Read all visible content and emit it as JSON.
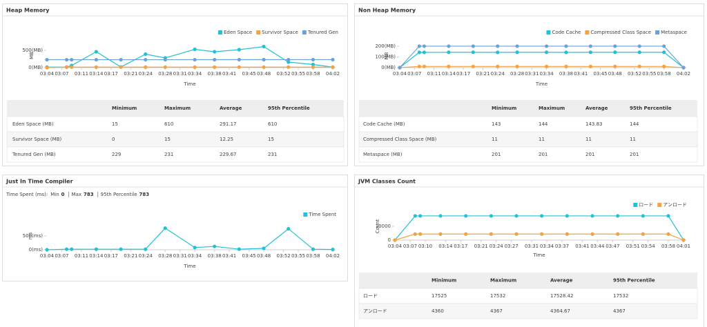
{
  "chart_data": [
    {
      "type": "line",
      "title": "Heap Memory",
      "ylabel": "MB",
      "xlabel": "Time",
      "x": [
        "03:04",
        "03:08",
        "03:09",
        "03:14",
        "03:19",
        "03:24",
        "03:28",
        "03:34",
        "03:38",
        "03:43",
        "03:48",
        "03:53",
        "03:58",
        "04:02"
      ],
      "xlim": [
        "03:04",
        "04:02"
      ],
      "xticks": [
        "03:04",
        "03:07",
        "03:11",
        "03:14",
        "03:17",
        "03:21",
        "03:24",
        "03:28",
        "03:31",
        "03:34",
        "03:38",
        "03:41",
        "03:45",
        "03:48",
        "03:52",
        "03:55",
        "03:58",
        "04:02"
      ],
      "ylim": [
        0,
        700
      ],
      "yticks": [
        {
          "value": 0,
          "label": "0(MB)"
        },
        {
          "value": 500,
          "label": "500(MB)"
        }
      ],
      "legend": "top-right",
      "series": [
        {
          "name": "Eden Space",
          "color": "#1fc2d6",
          "values": [
            15,
            15,
            60,
            460,
            20,
            390,
            280,
            530,
            460,
            520,
            610,
            160,
            90,
            15
          ]
        },
        {
          "name": "Survivor Space",
          "color": "#f4a340",
          "values": [
            0,
            15,
            15,
            15,
            15,
            15,
            15,
            15,
            15,
            15,
            15,
            15,
            15,
            15
          ]
        },
        {
          "name": "Tenured Gen",
          "color": "#6aa2d8",
          "values": [
            229,
            229,
            229,
            229,
            229,
            229,
            229,
            229,
            230,
            230,
            230,
            231,
            231,
            231
          ]
        }
      ],
      "table": {
        "header": [
          "Minimum",
          "Maximum",
          "Average",
          "95th Percentile"
        ],
        "rows": [
          {
            "name": "Eden Space (MB)",
            "values": [
              15,
              610,
              291.17,
              610
            ]
          },
          {
            "name": "Survivor Space (MB)",
            "values": [
              0,
              15,
              12.25,
              15
            ]
          },
          {
            "name": "Tenured Gen (MB)",
            "values": [
              229,
              231,
              229.67,
              231
            ]
          }
        ]
      }
    },
    {
      "type": "line",
      "title": "Non Heap Memory",
      "ylabel": "MB",
      "xlabel": "Time",
      "x": [
        "03:04",
        "03:08",
        "03:09",
        "03:14",
        "03:19",
        "03:24",
        "03:28",
        "03:34",
        "03:38",
        "03:43",
        "03:48",
        "03:53",
        "03:58",
        "04:02"
      ],
      "xlim": [
        "03:04",
        "04:02"
      ],
      "xticks": [
        "03:04",
        "03:07",
        "03:11",
        "03:14",
        "03:17",
        "03:21",
        "03:24",
        "03:28",
        "03:31",
        "03:34",
        "03:38",
        "03:41",
        "03:45",
        "03:48",
        "03:52",
        "03:55",
        "03:58",
        "04:02"
      ],
      "ylim": [
        0,
        220
      ],
      "yticks": [
        {
          "value": 0,
          "label": "0(MB)"
        },
        {
          "value": 100,
          "label": "100(MB)"
        },
        {
          "value": 200,
          "label": "200(MB)"
        }
      ],
      "legend": "top-right",
      "series": [
        {
          "name": "Code Cache",
          "color": "#1fc2d6",
          "values": [
            0,
            143,
            143,
            144,
            144,
            143,
            144,
            144,
            143,
            144,
            144,
            144,
            144,
            0
          ]
        },
        {
          "name": "Compressed Class Space",
          "color": "#f4a340",
          "values": [
            0,
            11,
            11,
            11,
            11,
            11,
            11,
            11,
            11,
            11,
            11,
            11,
            11,
            0
          ]
        },
        {
          "name": "Metaspace",
          "color": "#6aa2d8",
          "values": [
            0,
            201,
            201,
            201,
            201,
            201,
            201,
            201,
            201,
            201,
            201,
            201,
            201,
            0
          ]
        }
      ],
      "table": {
        "header": [
          "Minimum",
          "Maximum",
          "Average",
          "95th Percentile"
        ],
        "rows": [
          {
            "name": "Code Cache (MB)",
            "values": [
              143,
              144,
              143.83,
              144
            ]
          },
          {
            "name": "Compressed Class Space (MB)",
            "values": [
              11,
              11,
              11,
              11
            ]
          },
          {
            "name": "Metaspace (MB)",
            "values": [
              201,
              201,
              201,
              201
            ]
          }
        ]
      }
    },
    {
      "type": "line",
      "title": "Just In Time Compiler",
      "ylabel": "ms",
      "xlabel": "Time",
      "subtitle": "Time Spent (ms):",
      "stats": [
        {
          "name": "Min",
          "value": 0
        },
        {
          "name": "Max",
          "value": 783
        },
        {
          "name": "95th Percentile",
          "value": 783
        }
      ],
      "x": [
        "03:04",
        "03:08",
        "03:09",
        "03:14",
        "03:19",
        "03:24",
        "03:28",
        "03:34",
        "03:38",
        "03:43",
        "03:48",
        "03:53",
        "03:58",
        "04:02"
      ],
      "xlim": [
        "03:04",
        "04:02"
      ],
      "xticks": [
        "03:04",
        "03:07",
        "03:11",
        "03:14",
        "03:17",
        "03:21",
        "03:24",
        "03:28",
        "03:31",
        "03:34",
        "03:38",
        "03:41",
        "03:45",
        "03:48",
        "03:52",
        "03:55",
        "03:58",
        "04:02"
      ],
      "ylim": [
        0,
        1000
      ],
      "yticks": [
        {
          "value": 0,
          "label": "0(ms)"
        },
        {
          "value": 500,
          "label": "500(ms)"
        }
      ],
      "legend": "top-right",
      "series": [
        {
          "name": "Time Spent",
          "color": "#1fc2d6",
          "values": [
            0,
            20,
            20,
            20,
            20,
            20,
            783,
            80,
            120,
            20,
            50,
            760,
            20,
            10
          ]
        }
      ]
    },
    {
      "type": "line",
      "title": "JVM Classes Count",
      "ylabel": "Count",
      "xlabel": "Time",
      "x": [
        "03:04",
        "03:08",
        "03:09",
        "03:13",
        "03:18",
        "03:23",
        "03:28",
        "03:33",
        "03:38",
        "03:43",
        "03:48",
        "03:53",
        "03:58",
        "04:01"
      ],
      "xlim": [
        "03:04",
        "04:01"
      ],
      "xticks": [
        "03:04",
        "03:07",
        "03:10",
        "03:14",
        "03:17",
        "03:21",
        "03:24",
        "03:27",
        "03:31",
        "03:34",
        "03:37",
        "03:41",
        "03:44",
        "03:47",
        "03:51",
        "03:54",
        "03:58",
        "04:01"
      ],
      "ylim": [
        0,
        20000
      ],
      "yticks": [
        0,
        10000
      ],
      "legend": "top-right",
      "series": [
        {
          "name": "ロード",
          "color": "#1fc2d6",
          "values": [
            0,
            17525,
            17532,
            17532,
            17532,
            17532,
            17532,
            17532,
            17532,
            17532,
            17532,
            17532,
            17532,
            0
          ]
        },
        {
          "name": "アンロード",
          "color": "#f4a340",
          "values": [
            0,
            4360,
            4367,
            4367,
            4367,
            4367,
            4367,
            4367,
            4367,
            4367,
            4367,
            4367,
            4367,
            0
          ]
        }
      ],
      "table": {
        "header": [
          "Minimum",
          "Maximum",
          "Average",
          "95th Percentile"
        ],
        "rows": [
          {
            "name": "ロード",
            "values": [
              17525,
              17532,
              17528.42,
              17532
            ]
          },
          {
            "name": "アンロード",
            "values": [
              4360,
              4367,
              4364.67,
              4367
            ]
          }
        ]
      }
    }
  ]
}
